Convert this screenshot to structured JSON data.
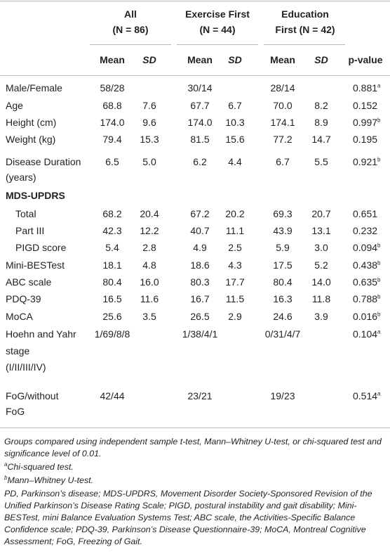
{
  "table": {
    "groups": [
      [
        "All",
        "(N = 86)"
      ],
      [
        "Exercise First",
        "(N = 44)"
      ],
      [
        "Education",
        "First (N = 42)"
      ]
    ],
    "subheaders": [
      "Mean",
      "SD",
      "Mean",
      "SD",
      "Mean",
      "SD",
      "p-value"
    ],
    "rows": [
      {
        "label": [
          "Male/Female"
        ],
        "cells": [
          "58/28",
          null,
          "30/14",
          null,
          "28/14",
          null
        ],
        "p": "0.881",
        "sup": "a"
      },
      {
        "label": [
          "Age"
        ],
        "cells": [
          "68.8",
          "7.6",
          "67.7",
          "6.7",
          "70.0",
          "8.2"
        ],
        "p": "0.152"
      },
      {
        "label": [
          "Height (cm)"
        ],
        "cells": [
          "174.0",
          "9.6",
          "174.0",
          "10.3",
          "174.1",
          "8.9"
        ],
        "p": "0.997",
        "sup": "b"
      },
      {
        "label": [
          "Weight (kg)"
        ],
        "cells": [
          "79.4",
          "15.3",
          "81.5",
          "15.6",
          "77.2",
          "14.7"
        ],
        "p": "0.195"
      },
      {
        "label": [
          "Disease Duration",
          "(years)"
        ],
        "cells": [
          "6.5",
          "5.0",
          "6.2",
          "4.4",
          "6.7",
          "5.5"
        ],
        "p": "0.921",
        "sup": "b"
      },
      {
        "label": [
          "MDS-UPDRS"
        ],
        "section": true
      },
      {
        "label": [
          "Total"
        ],
        "sub": true,
        "cells": [
          "68.2",
          "20.4",
          "67.2",
          "20.2",
          "69.3",
          "20.7"
        ],
        "p": "0.651"
      },
      {
        "label": [
          "Part III"
        ],
        "sub": true,
        "cells": [
          "42.3",
          "12.2",
          "40.7",
          "11.1",
          "43.9",
          "13.1"
        ],
        "p": "0.232"
      },
      {
        "label": [
          "PIGD score"
        ],
        "sub": true,
        "cells": [
          "5.4",
          "2.8",
          "4.9",
          "2.5",
          "5.9",
          "3.0"
        ],
        "p": "0.094",
        "sup": "b"
      },
      {
        "label": [
          "Mini-BESTest"
        ],
        "cells": [
          "18.1",
          "4.8",
          "18.6",
          "4.3",
          "17.5",
          "5.2"
        ],
        "p": "0.438",
        "sup": "b"
      },
      {
        "label": [
          "ABC scale"
        ],
        "cells": [
          "80.4",
          "16.0",
          "80.3",
          "17.7",
          "80.4",
          "14.0"
        ],
        "p": "0.635",
        "sup": "b"
      },
      {
        "label": [
          "PDQ-39"
        ],
        "cells": [
          "16.5",
          "11.6",
          "16.7",
          "11.5",
          "16.3",
          "11.8"
        ],
        "p": "0.788",
        "sup": "b"
      },
      {
        "label": [
          "MoCA"
        ],
        "cells": [
          "25.6",
          "3.5",
          "26.5",
          "2.9",
          "24.6",
          "3.9"
        ],
        "p": "0.016",
        "sup": "b"
      },
      {
        "label": [
          "Hoehn and Yahr",
          "stage",
          "(I/II/III/IV)"
        ],
        "cells": [
          "1/69/8/8",
          null,
          "1/38/4/1",
          null,
          "0/31/4/7",
          null
        ],
        "p": "0.104",
        "sup": "a"
      },
      {
        "label": [
          "FoG/without",
          "FoG"
        ],
        "cells": [
          "42/44",
          null,
          "23/21",
          null,
          "19/23",
          null
        ],
        "p": "0.514",
        "sup": "a"
      }
    ]
  },
  "notes": [
    {
      "text": "Groups compared using independent sample t-test, Mann–Whitney U-test, or chi-squared test and significance level of 0.01."
    },
    {
      "sup": "a",
      "text": "Chi-squared test."
    },
    {
      "sup": "b",
      "text": "Mann–Whitney U-test."
    },
    {
      "text": "PD, Parkinson’s disease; MDS-UPDRS, Movement Disorder Society-Sponsored Revision of the Unified Parkinson’s Disease Rating Scale; PIGD, postural instability and gait disability; Mini-BESTest, mini Balance Evaluation Systems Test; ABC scale, the Activities-Specific Balance Confidence scale; PDQ-39, Parkinson’s Disease Questionnaire-39; MoCA, Montreal Cognitive Assessment; FoG, Freezing of Gait."
    }
  ]
}
